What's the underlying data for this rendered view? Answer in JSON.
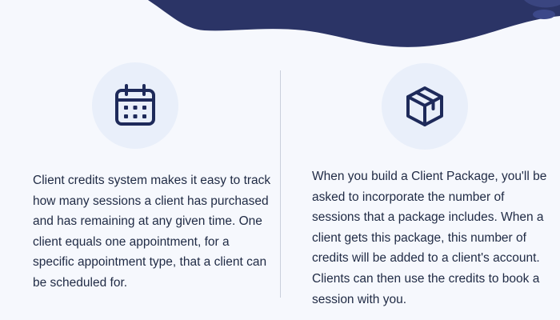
{
  "colors": {
    "background": "#f6f8fd",
    "wave": "#2b3466",
    "icon": "#1e2a5a",
    "icon_circle": "#e9effa",
    "text": "#1f2a44",
    "divider": "#c9cfdc"
  },
  "features": [
    {
      "icon": "calendar-icon",
      "text": "Client credits system makes it easy to track how many sessions a client has purchased and has remaining at any given time. One client equals one appointment, for a specific appointment type, that a client can be scheduled for."
    },
    {
      "icon": "package-icon",
      "text": "When you build a Client Package, you'll be asked to incorporate the number of sessions that a package includes. When a client gets this package, this number of credits will be added to a client's account. Clients can then use the credits to book a session with you."
    }
  ]
}
